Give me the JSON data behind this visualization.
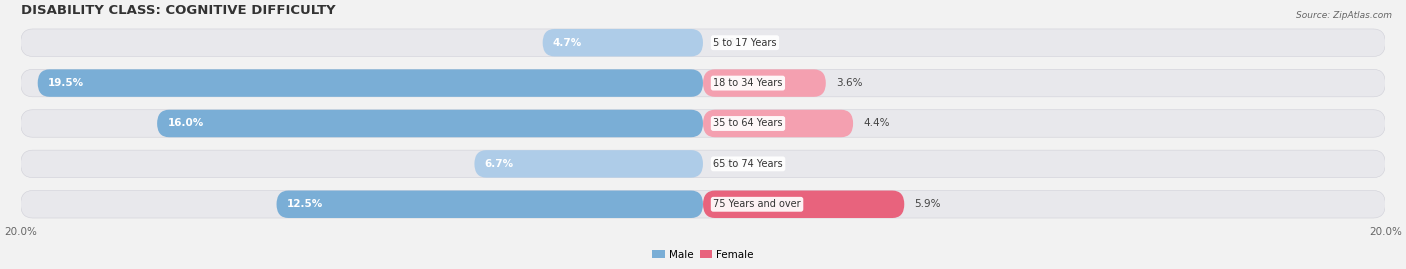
{
  "title": "DISABILITY CLASS: COGNITIVE DIFFICULTY",
  "source": "Source: ZipAtlas.com",
  "categories": [
    "5 to 17 Years",
    "18 to 34 Years",
    "35 to 64 Years",
    "65 to 74 Years",
    "75 Years and over"
  ],
  "male_values": [
    4.7,
    19.5,
    16.0,
    6.7,
    12.5
  ],
  "female_values": [
    0.0,
    3.6,
    4.4,
    0.0,
    5.9
  ],
  "max_val": 20.0,
  "male_color": "#7aaed6",
  "female_color": "#e8637d",
  "male_color_light": "#aecce8",
  "female_color_light": "#f4a0b0",
  "row_bg_color": "#e8e8ec",
  "fig_bg_color": "#f2f2f2",
  "title_fontsize": 9.5,
  "label_fontsize": 7.5,
  "tick_fontsize": 7.5,
  "value_fontsize": 7.5
}
